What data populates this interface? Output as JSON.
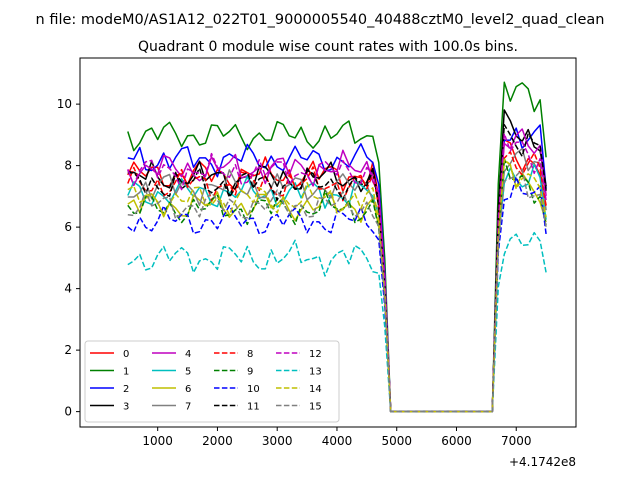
{
  "figure": {
    "suptitle": "n file: modeM0/AS1A12_022T01_9000005540_40488cztM0_level2_quad_clean",
    "title": "Quadrant 0 module wise count rates with 100.0s bins.",
    "offset_label": "+4.1742e8"
  },
  "chart_data": {
    "type": "line",
    "title": "Quadrant 0 module wise count rates with 100.0s bins.",
    "xlabel": "",
    "ylabel": "",
    "x_offset": 417420000,
    "xlim": [
      -300,
      8000
    ],
    "ylim": [
      -0.5,
      11.5
    ],
    "xticks": [
      1000,
      2000,
      3000,
      4000,
      5000,
      6000,
      7000
    ],
    "yticks": [
      0,
      2,
      4,
      6,
      8,
      10
    ],
    "grid": false,
    "legend_position": "lower-left",
    "legend_columns": 4,
    "series_meta": [
      {
        "name": "0",
        "color": "#ff0000",
        "dash": "solid",
        "base": 7.7,
        "after": 8.6,
        "p": 0
      },
      {
        "name": "1",
        "color": "#008000",
        "dash": "solid",
        "base": 9.0,
        "after": 10.6,
        "p": 1
      },
      {
        "name": "2",
        "color": "#0000ff",
        "dash": "solid",
        "base": 8.2,
        "after": 9.3,
        "p": 2
      },
      {
        "name": "3",
        "color": "#000000",
        "dash": "solid",
        "base": 7.6,
        "after": 9.4,
        "p": 3
      },
      {
        "name": "4",
        "color": "#bf00bf",
        "dash": "solid",
        "base": 7.9,
        "after": 9.0,
        "p": 4
      },
      {
        "name": "5",
        "color": "#00bfbf",
        "dash": "solid",
        "base": 7.1,
        "after": 8.0,
        "p": 5
      },
      {
        "name": "6",
        "color": "#bfbf00",
        "dash": "solid",
        "base": 6.7,
        "after": 7.9,
        "p": 6
      },
      {
        "name": "7",
        "color": "#808080",
        "dash": "solid",
        "base": 7.3,
        "after": 8.4,
        "p": 7
      },
      {
        "name": "8",
        "color": "#ff0000",
        "dash": "dashed",
        "base": 7.4,
        "after": 8.5,
        "p": 8
      },
      {
        "name": "9",
        "color": "#008000",
        "dash": "dashed",
        "base": 6.6,
        "after": 7.8,
        "p": 9
      },
      {
        "name": "10",
        "color": "#0000ff",
        "dash": "dashed",
        "base": 6.2,
        "after": 7.4,
        "p": 10
      },
      {
        "name": "11",
        "color": "#000000",
        "dash": "dashed",
        "base": 7.4,
        "after": 9.2,
        "p": 11
      },
      {
        "name": "12",
        "color": "#bf00bf",
        "dash": "dashed",
        "base": 7.8,
        "after": 8.8,
        "p": 12
      },
      {
        "name": "13",
        "color": "#00bfbf",
        "dash": "dashed",
        "base": 5.0,
        "after": 5.8,
        "p": 13
      },
      {
        "name": "14",
        "color": "#bfbf00",
        "dash": "dashed",
        "base": 6.9,
        "after": 8.1,
        "p": 14
      },
      {
        "name": "15",
        "color": "#808080",
        "dash": "dashed",
        "base": 6.7,
        "after": 7.7,
        "p": 15
      }
    ],
    "time_grid": {
      "start": 500,
      "gap_start": 4800,
      "gap_end": 6600,
      "end": 7500,
      "step": 100
    }
  }
}
